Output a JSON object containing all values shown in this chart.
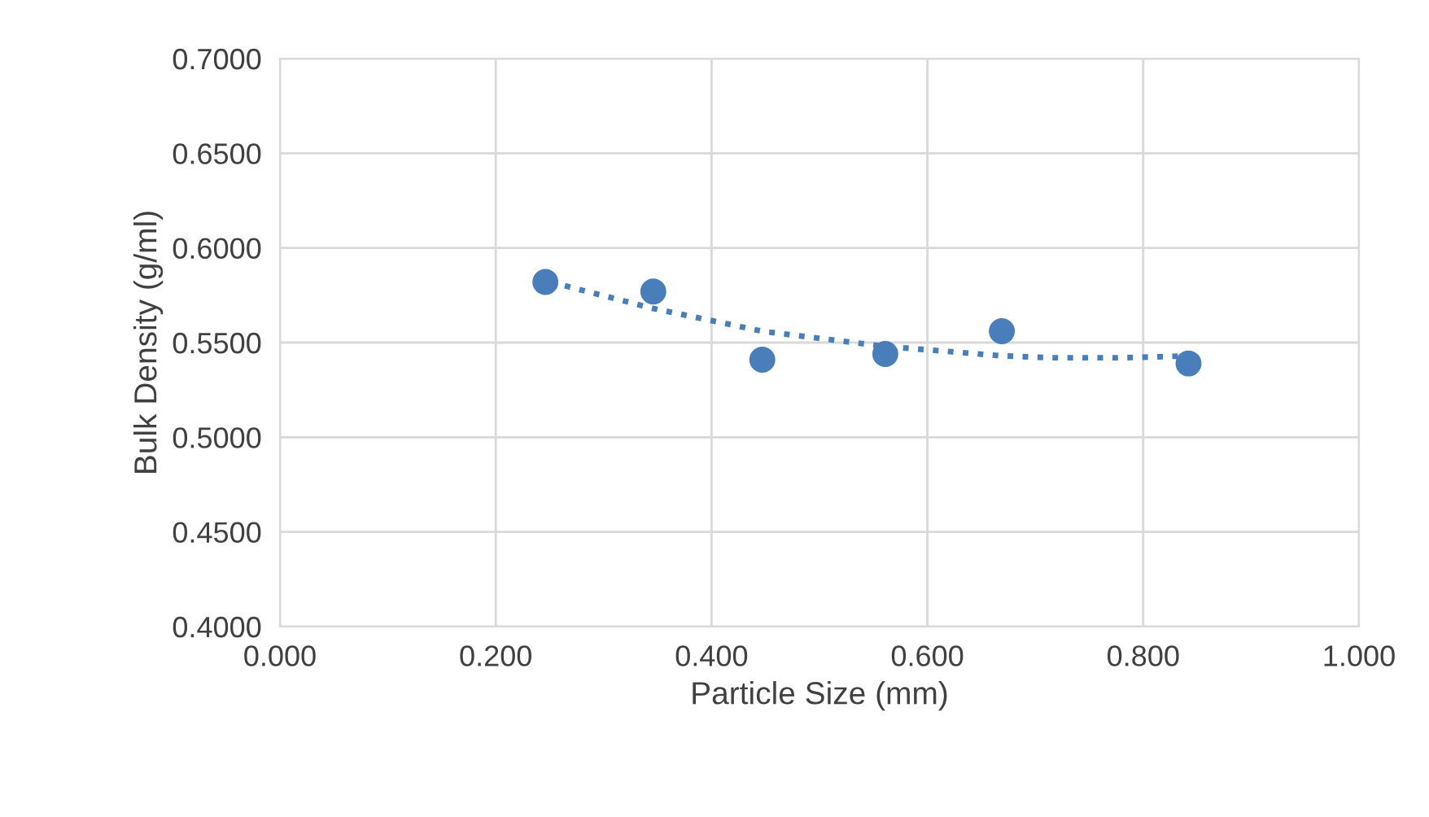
{
  "chart_data": {
    "type": "scatter",
    "xlabel": "Particle Size (mm)",
    "ylabel": "Bulk Density (g/ml)",
    "series": [
      {
        "color": "#4a7ebb",
        "marker": "circle",
        "x": [
          0.246,
          0.346,
          0.447,
          0.561,
          0.669,
          0.842
        ],
        "values": [
          0.582,
          0.577,
          0.541,
          0.544,
          0.556,
          0.539
        ]
      },
      {
        "type": "line",
        "color": "#4a7ebb",
        "line_style": "dotted",
        "marker": "none",
        "x": [
          0.264,
          0.346,
          0.447,
          0.561,
          0.669,
          0.714,
          0.783,
          0.842
        ],
        "values": [
          0.58,
          0.568,
          0.556,
          0.548,
          0.543,
          0.542,
          0.542,
          0.543
        ]
      }
    ],
    "xlim": [
      0.0,
      1.0
    ],
    "xticks": [
      {
        "value": 0.0,
        "label": "0.000"
      },
      {
        "value": 0.2,
        "label": "0.200"
      },
      {
        "value": 0.4,
        "label": "0.400"
      },
      {
        "value": 0.6,
        "label": "0.600"
      },
      {
        "value": 0.8,
        "label": "0.800"
      },
      {
        "value": 1.0,
        "label": "1.000"
      }
    ],
    "ylim": [
      0.4,
      0.7
    ],
    "yticks": [
      {
        "value": 0.4,
        "label": "0.4000"
      },
      {
        "value": 0.45,
        "label": "0.4500"
      },
      {
        "value": 0.5,
        "label": "0.5000"
      },
      {
        "value": 0.55,
        "label": "0.5500"
      },
      {
        "value": 0.6,
        "label": "0.6000"
      },
      {
        "value": 0.65,
        "label": "0.6500"
      },
      {
        "value": 0.7,
        "label": "0.7000"
      }
    ],
    "grid": true
  }
}
